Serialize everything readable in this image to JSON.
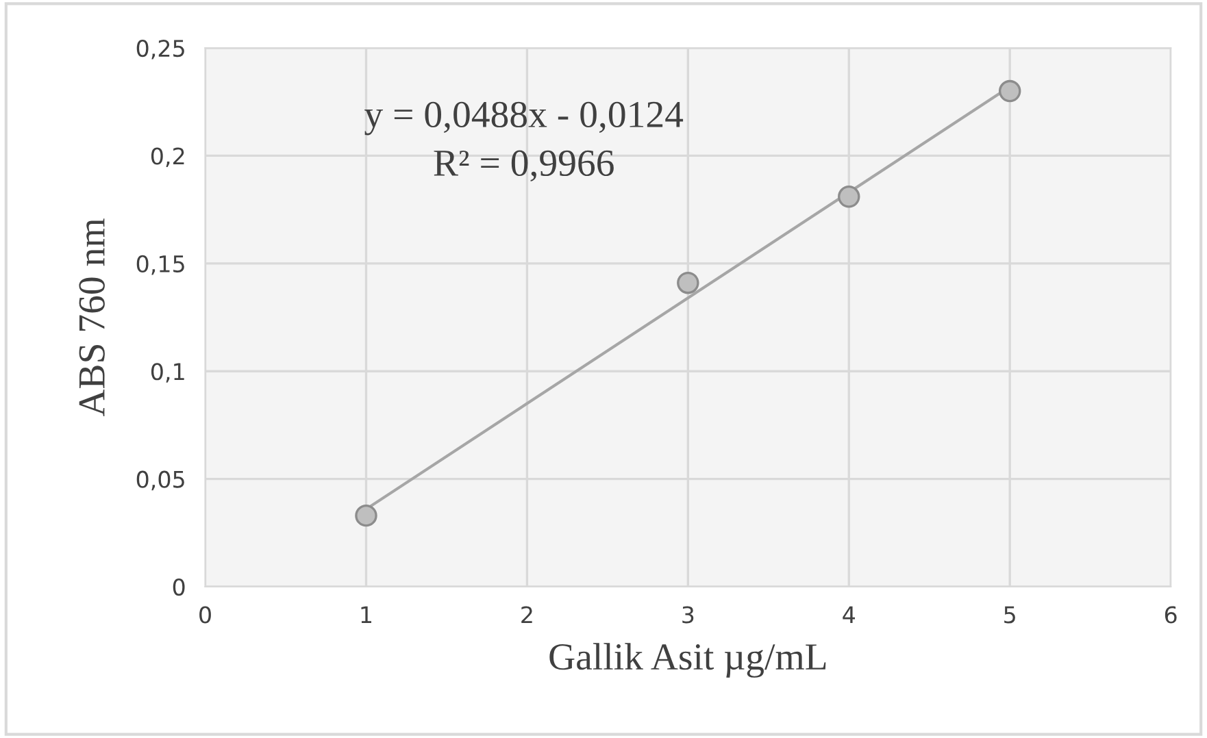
{
  "chart_data": {
    "type": "scatter",
    "xlabel": "Gallik Asit µg/mL",
    "ylabel": "ABS 760 nm",
    "annotations": [
      "y = 0,0488x - 0,0124",
      "R² = 0,9966"
    ],
    "series": [
      {
        "color": "#bfbfbf",
        "x": [
          1,
          3,
          4,
          5
        ],
        "values": [
          0.033,
          0.141,
          0.181,
          0.23
        ],
        "marker": "circle"
      },
      {
        "type": "line",
        "color": "#a6a6a6",
        "x": [
          1,
          5
        ],
        "values": [
          0.036,
          0.232
        ],
        "marker": "none",
        "line_style": "solid"
      }
    ],
    "xlim": [
      0,
      6
    ],
    "xticks": [
      0,
      1,
      2,
      3,
      4,
      5,
      6
    ],
    "ylim": [
      0,
      0.25
    ],
    "yticks": [
      {
        "value": 0,
        "label": "0"
      },
      {
        "value": 0.05,
        "label": "0,05"
      },
      {
        "value": 0.1,
        "label": "0,1"
      },
      {
        "value": 0.15,
        "label": "0,15"
      },
      {
        "value": 0.2,
        "label": "0,2"
      },
      {
        "value": 0.25,
        "label": "0,25"
      }
    ],
    "grid": true
  }
}
